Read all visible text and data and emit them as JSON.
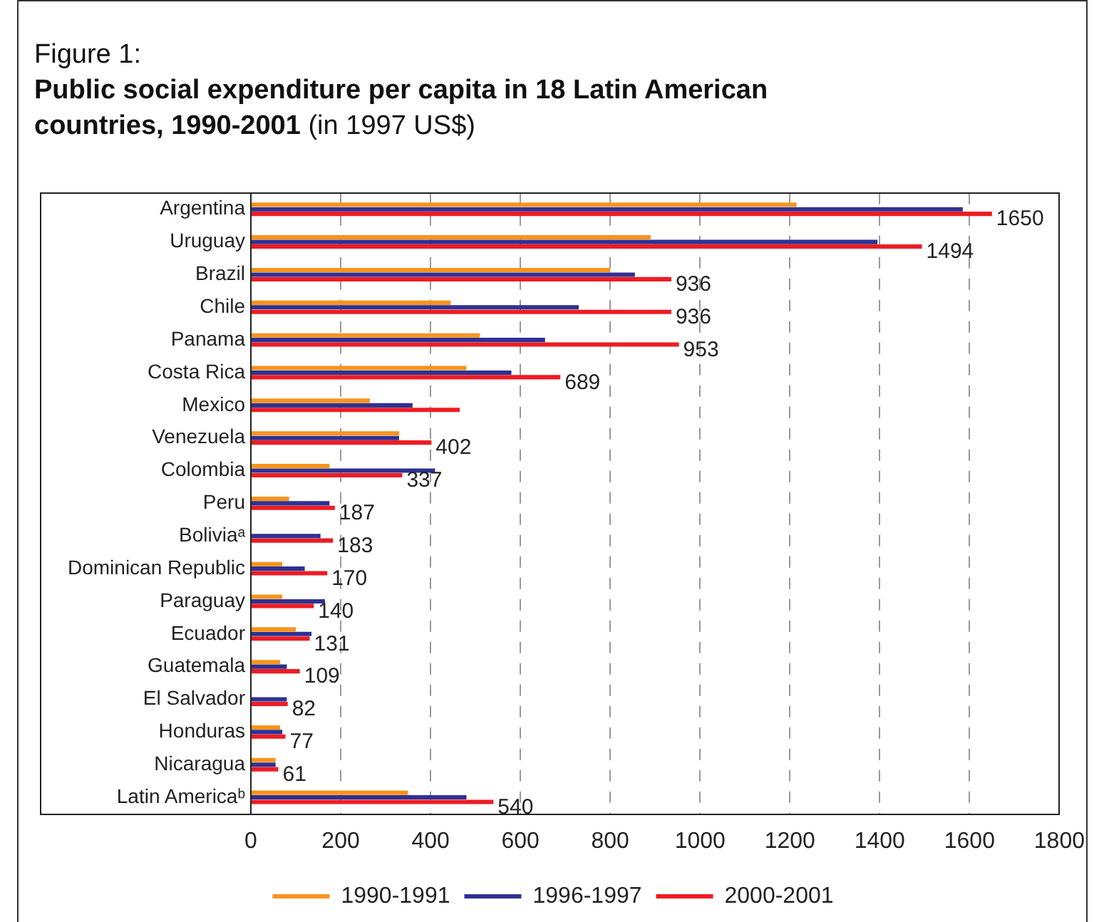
{
  "chart_data": {
    "type": "bar",
    "orientation": "horizontal",
    "title": "Figure 1:",
    "subtitle": "Public social expenditure per capita in 18 Latin American countries, 1990-2001",
    "annotations": [
      "(in 1997 US$)"
    ],
    "categories": [
      "Argentina",
      "Uruguay",
      "Brazil",
      "Chile",
      "Panama",
      "Costa Rica",
      "Mexico",
      "Venezuela",
      "Colombia",
      "Peru",
      "Boliviaᵃ",
      "Dominican Republic",
      "Paraguay",
      "Ecuador",
      "Guatemala",
      "El Salvador",
      "Honduras",
      "Nicaragua",
      "Latin Americaᵇ"
    ],
    "series": [
      {
        "name": "1990-1991",
        "color": "#f7941d",
        "values": [
          1215,
          890,
          800,
          445,
          510,
          480,
          265,
          330,
          175,
          85,
          null,
          70,
          70,
          100,
          65,
          null,
          65,
          55,
          350
        ]
      },
      {
        "name": "1996-1997",
        "color": "#2e3192",
        "values": [
          1585,
          1395,
          855,
          730,
          655,
          580,
          360,
          330,
          410,
          175,
          155,
          120,
          165,
          135,
          80,
          80,
          70,
          55,
          480
        ]
      },
      {
        "name": "2000-2001",
        "color": "#ed1c24",
        "values": [
          1650,
          1494,
          936,
          936,
          953,
          689,
          465,
          402,
          337,
          187,
          183,
          170,
          140,
          131,
          109,
          82,
          77,
          61,
          540
        ],
        "value_labels": [
          "1650",
          "1494",
          "936",
          "936",
          "953",
          "689",
          null,
          "402",
          "337",
          "187",
          "183",
          "170",
          "140",
          "131",
          "109",
          "82",
          "77",
          "61",
          "540"
        ]
      }
    ],
    "xlim": [
      0,
      1800
    ],
    "xticks": [
      0,
      200,
      400,
      600,
      800,
      1000,
      1200,
      1400,
      1600,
      1800
    ],
    "grid": "x",
    "legend": "bottom"
  }
}
